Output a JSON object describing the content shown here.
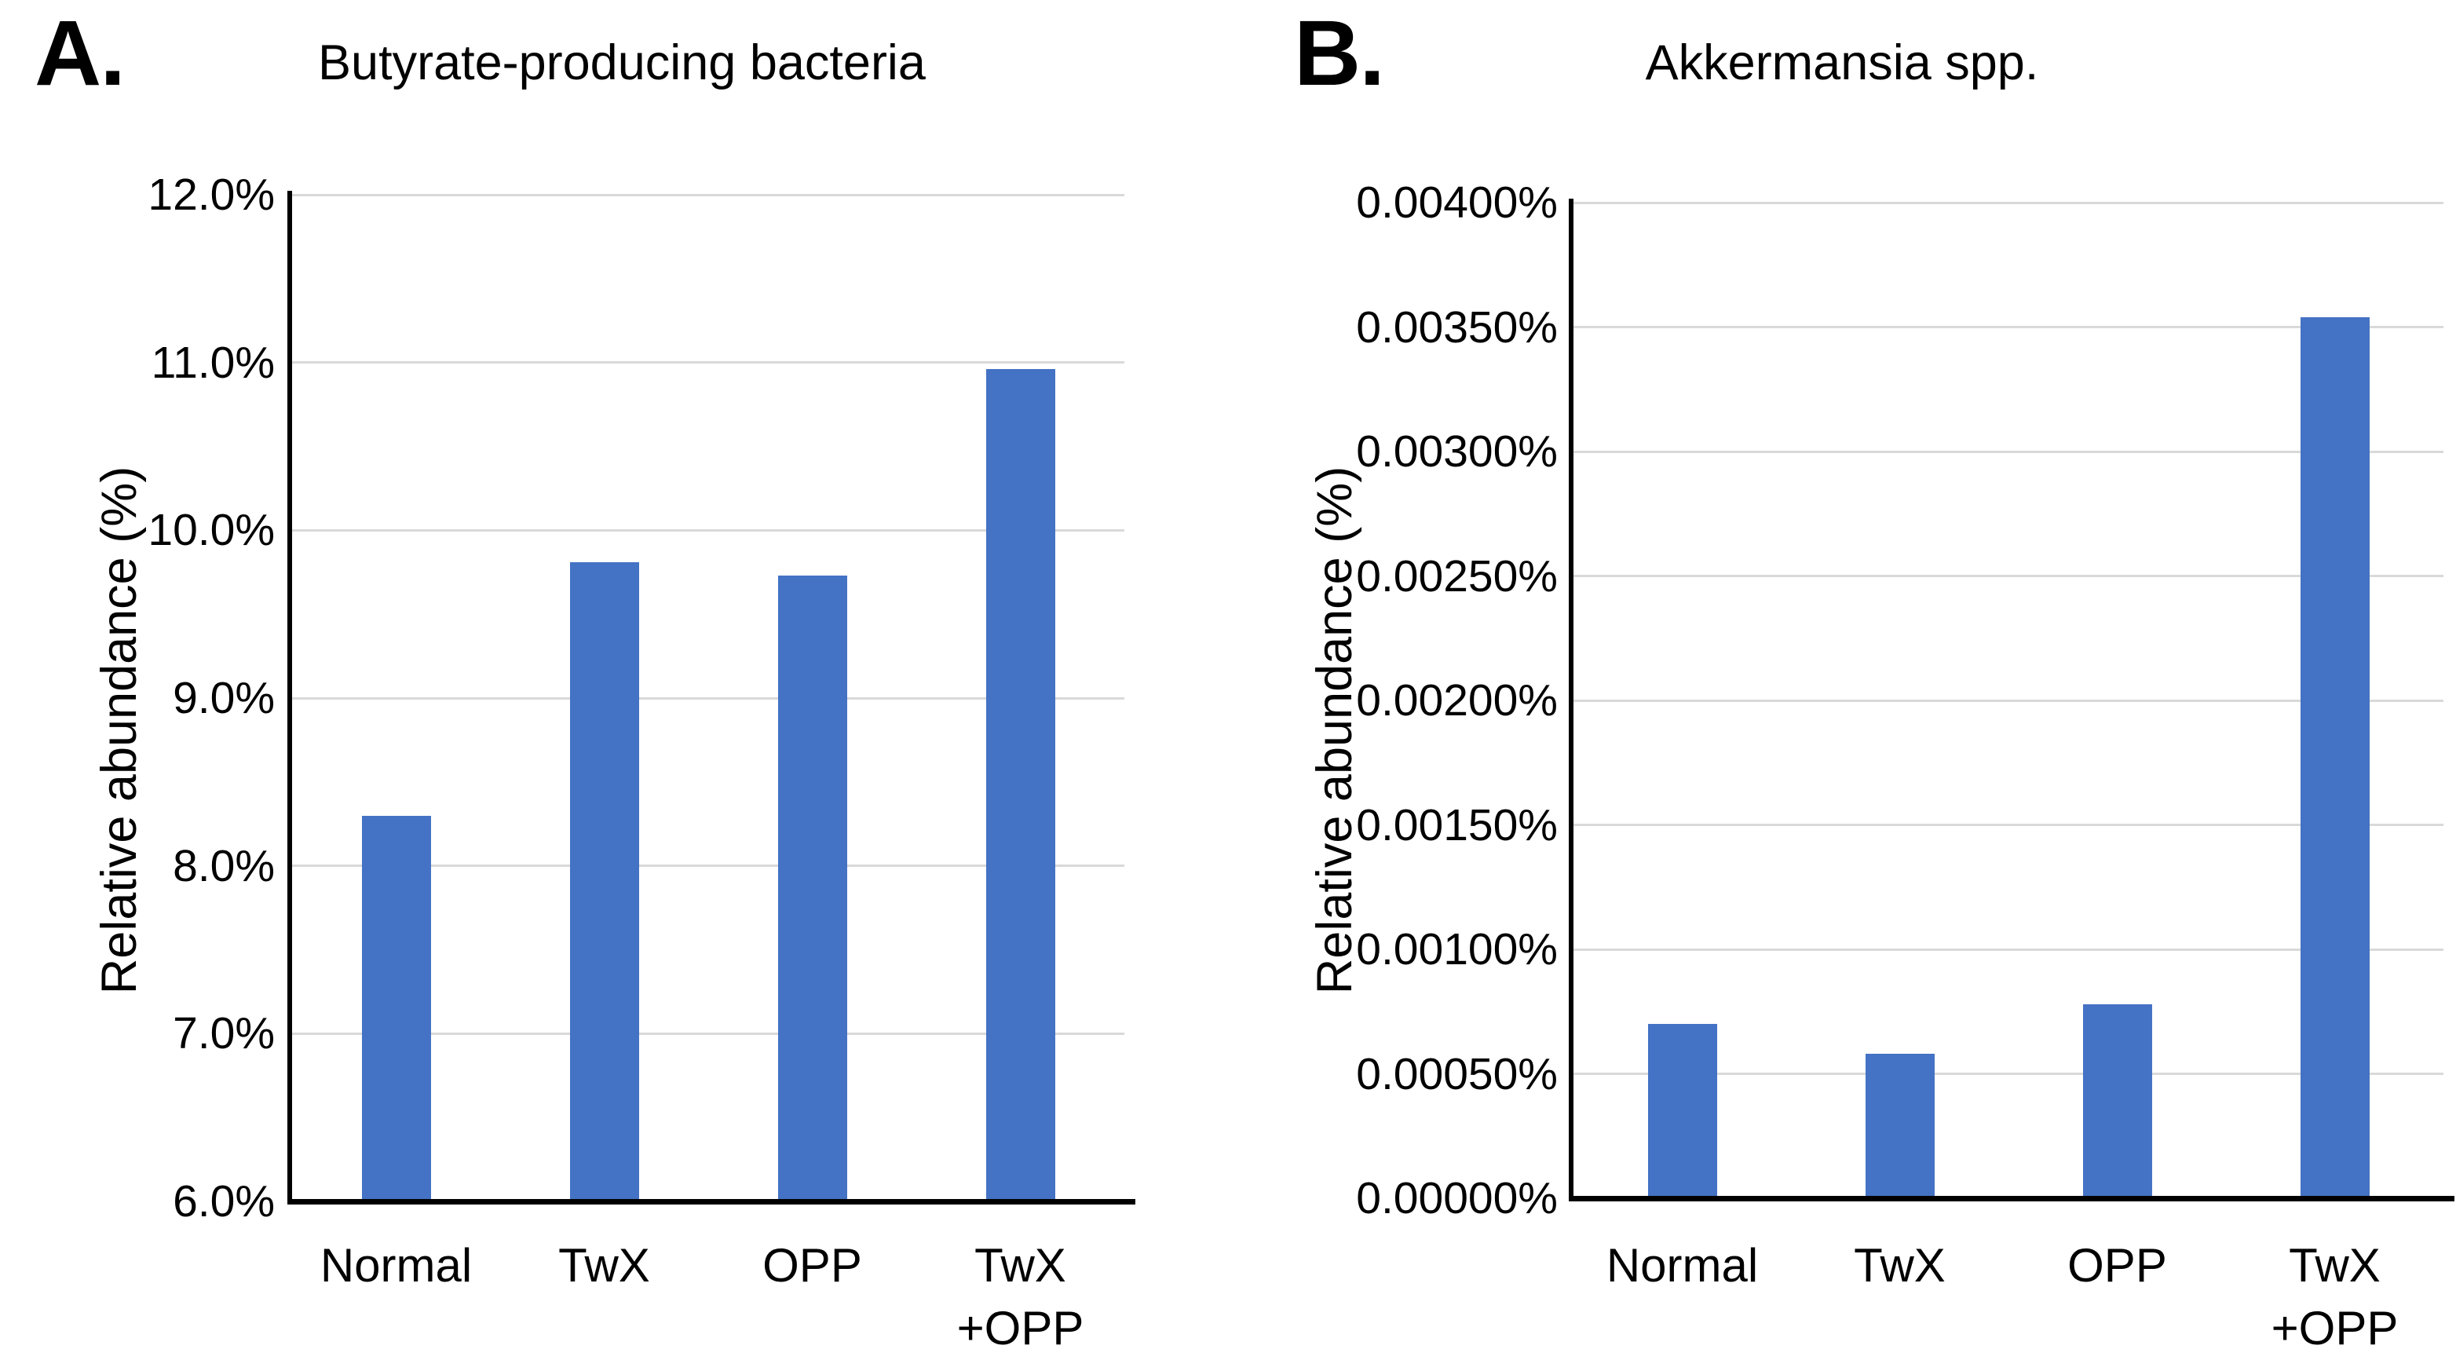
{
  "figure": {
    "background": "#ffffff",
    "text_color": "#000000"
  },
  "chart_data": [
    {
      "type": "bar",
      "panel_letter": "A.",
      "title": "Butyrate-producing bacteria",
      "ylabel": "Relative abundance (%)",
      "xlabel": "",
      "categories": [
        "Normal",
        "TwX",
        "OPP",
        "TwX\n+OPP"
      ],
      "values": [
        8.3,
        9.81,
        9.73,
        10.96
      ],
      "ylim": [
        6.0,
        12.0
      ],
      "ytick_step": 1.0,
      "ytick_decimals": 1,
      "ytick_suffix": "%",
      "ytick_labels": [
        "6.0%",
        "7.0%",
        "8.0%",
        "9.0%",
        "10.0%",
        "11.0%",
        "12.0%"
      ],
      "grid": true,
      "legend": false,
      "bar_color": "#4472C4",
      "gridline_color": "#D9D9D9",
      "axis_color": "#000000"
    },
    {
      "type": "bar",
      "panel_letter": "B.",
      "title": "Akkermansia spp.",
      "ylabel": "Relative abundance (%)",
      "xlabel": "",
      "categories": [
        "Normal",
        "TwX",
        "OPP",
        "TwX\n+OPP"
      ],
      "values": [
        0.0007,
        0.00058,
        0.00078,
        0.00354
      ],
      "ylim": [
        0.0,
        0.004
      ],
      "ytick_step": 0.0005,
      "ytick_decimals": 5,
      "ytick_suffix": "%",
      "ytick_labels": [
        "0.00000%",
        "0.00050%",
        "0.00100%",
        "0.00150%",
        "0.00200%",
        "0.00250%",
        "0.00300%",
        "0.00350%",
        "0.00400%"
      ],
      "grid": true,
      "legend": false,
      "bar_color": "#4472C4",
      "gridline_color": "#D9D9D9",
      "axis_color": "#000000"
    }
  ]
}
